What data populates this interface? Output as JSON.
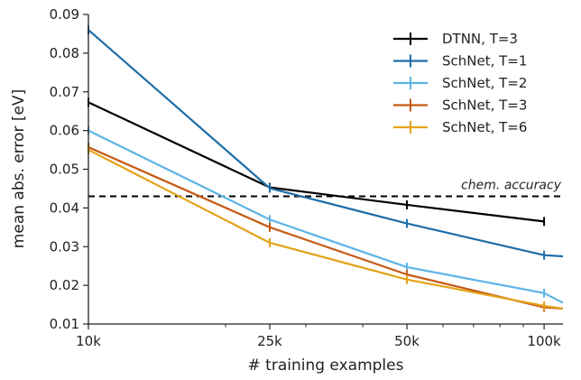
{
  "chart_data": {
    "type": "line",
    "xlabel": "# training examples",
    "ylabel": "mean abs. error [eV]",
    "x_scale": "log",
    "xlim": [
      10000,
      110000
    ],
    "ylim": [
      0.01,
      0.09
    ],
    "x_ticks": [
      {
        "value": 10000,
        "label": "10k"
      },
      {
        "value": 25000,
        "label": "25k"
      },
      {
        "value": 50000,
        "label": "50k"
      },
      {
        "value": 100000,
        "label": "100k"
      }
    ],
    "y_ticks": [
      {
        "value": 0.01,
        "label": "0.01"
      },
      {
        "value": 0.02,
        "label": "0.02"
      },
      {
        "value": 0.03,
        "label": "0.03"
      },
      {
        "value": 0.04,
        "label": "0.04"
      },
      {
        "value": 0.05,
        "label": "0.05"
      },
      {
        "value": 0.06,
        "label": "0.06"
      },
      {
        "value": 0.07,
        "label": "0.07"
      },
      {
        "value": 0.08,
        "label": "0.08"
      },
      {
        "value": 0.09,
        "label": "0.09"
      }
    ],
    "grid": false,
    "legend_position": "top-right",
    "series": [
      {
        "name": "DTNN, T=3",
        "color": "#000000",
        "points": [
          [
            10000,
            0.0673
          ],
          [
            25000,
            0.0453
          ],
          [
            50000,
            0.0408
          ],
          [
            100000,
            0.0365
          ]
        ]
      },
      {
        "name": "SchNet, T=1",
        "color": "#1f6ea8",
        "points": [
          [
            10000,
            0.086
          ],
          [
            25000,
            0.0451
          ],
          [
            50000,
            0.036
          ],
          [
            100000,
            0.0278
          ],
          [
            110000,
            0.0275
          ]
        ]
      },
      {
        "name": "SchNet, T=2",
        "color": "#5db4e5",
        "points": [
          [
            10000,
            0.06
          ],
          [
            25000,
            0.037
          ],
          [
            50000,
            0.0247
          ],
          [
            100000,
            0.018
          ],
          [
            110000,
            0.0155
          ]
        ]
      },
      {
        "name": "SchNet, T=3",
        "color": "#c55a14",
        "points": [
          [
            10000,
            0.0557
          ],
          [
            25000,
            0.035
          ],
          [
            50000,
            0.0228
          ],
          [
            100000,
            0.0143
          ],
          [
            110000,
            0.014
          ]
        ]
      },
      {
        "name": "SchNet, T=6",
        "color": "#e3a21a",
        "points": [
          [
            10000,
            0.055
          ],
          [
            25000,
            0.031
          ],
          [
            50000,
            0.0215
          ],
          [
            100000,
            0.0147
          ],
          [
            110000,
            0.014
          ]
        ]
      }
    ],
    "reference_line": {
      "label": "chem. accuracy",
      "y": 0.043,
      "style": "dashed",
      "color": "#000000"
    }
  }
}
